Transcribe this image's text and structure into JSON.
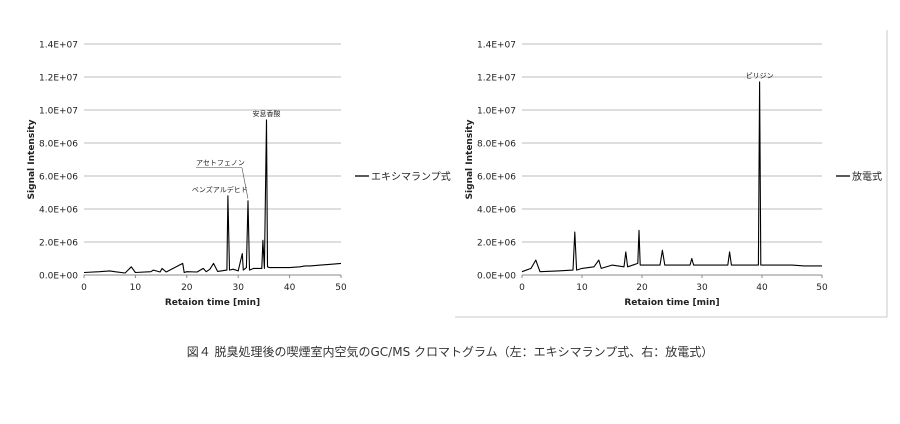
{
  "chart_data": [
    {
      "type": "line",
      "xlabel": "Retaion time [min]",
      "ylabel": "Signal Intensity",
      "xlim": [
        0,
        50
      ],
      "ylim": [
        0,
        14000000
      ],
      "xticks": [
        "0",
        "10",
        "20",
        "30",
        "40",
        "50"
      ],
      "yticks": [
        "0.0E+00",
        "2.0E+06",
        "4.0E+06",
        "6.0E+06",
        "8.0E+06",
        "1.0E+07",
        "1.2E+07",
        "1.4E+07"
      ],
      "grid": true,
      "legend_position": "right",
      "color": "#000000",
      "series": [
        {
          "name": "エキシマランプ式",
          "x": [
            0,
            3,
            5,
            6,
            8,
            9.2,
            10,
            13,
            13.5,
            14.8,
            15.2,
            16,
            19.2,
            19.5,
            20,
            22,
            23.2,
            23.8,
            24.5,
            25.2,
            26,
            27.8,
            28.0,
            28.3,
            29,
            30,
            30.8,
            31.0,
            31.6,
            31.9,
            32.2,
            33,
            34.6,
            34.8,
            35.1,
            35.5,
            35.7,
            36.1,
            37,
            38,
            40,
            42,
            43,
            44,
            46,
            48,
            50
          ],
          "y": [
            150000,
            200000,
            250000,
            200000,
            120000,
            500000,
            150000,
            200000,
            300000,
            180000,
            400000,
            180000,
            700000,
            150000,
            200000,
            180000,
            400000,
            200000,
            350000,
            700000,
            220000,
            300000,
            4800000,
            300000,
            350000,
            250000,
            1300000,
            300000,
            450000,
            4500000,
            300000,
            400000,
            400000,
            2100000,
            400000,
            9400000,
            500000,
            450000,
            450000,
            450000,
            450000,
            500000,
            550000,
            550000,
            600000,
            650000,
            700000
          ]
        }
      ],
      "annotations": [
        {
          "text": "安息香酸",
          "x": 35.5,
          "y": 9400000
        },
        {
          "text": "アセトフェノン",
          "x": 31.9,
          "y": 4500000
        },
        {
          "text": "ベンズアルデヒド",
          "x": 28.0,
          "y": 4800000
        }
      ]
    },
    {
      "type": "line",
      "xlabel": "Retaion time [min]",
      "ylabel": "Signal Intensity",
      "xlim": [
        0,
        50
      ],
      "ylim": [
        0,
        14000000
      ],
      "xticks": [
        "0",
        "10",
        "20",
        "30",
        "40",
        "50"
      ],
      "yticks": [
        "0.0E+00",
        "2.0E+06",
        "4.0E+06",
        "6.0E+06",
        "8.0E+06",
        "1.0E+07",
        "1.2E+07",
        "1.4E+07"
      ],
      "grid": true,
      "legend_position": "right",
      "color": "#000000",
      "series": [
        {
          "name": "放電式",
          "x": [
            0,
            1.5,
            2.3,
            3,
            6,
            8.5,
            8.8,
            9.1,
            10,
            12,
            12.8,
            13.2,
            15,
            17,
            17.3,
            17.6,
            19.3,
            19.5,
            19.7,
            21,
            23,
            23.4,
            23.8,
            25,
            27,
            28,
            28.3,
            28.6,
            30,
            32,
            34.3,
            34.6,
            34.9,
            37,
            39.4,
            39.6,
            39.8,
            41,
            43,
            45,
            47,
            50
          ],
          "y": [
            200000,
            400000,
            900000,
            200000,
            250000,
            300000,
            2600000,
            300000,
            400000,
            500000,
            900000,
            400000,
            600000,
            500000,
            1400000,
            500000,
            700000,
            2700000,
            600000,
            600000,
            600000,
            1500000,
            600000,
            600000,
            600000,
            600000,
            1000000,
            600000,
            600000,
            600000,
            600000,
            1400000,
            600000,
            600000,
            600000,
            11700000,
            600000,
            600000,
            600000,
            600000,
            550000,
            550000
          ]
        }
      ],
      "annotations": [
        {
          "text": "ピリジン",
          "x": 39.6,
          "y": 11700000
        }
      ]
    }
  ],
  "caption": "図４ 脱臭処理後の喫煙室内空気のGC/MS クロマトグラム（左：エキシマランプ式、右：放電式）"
}
